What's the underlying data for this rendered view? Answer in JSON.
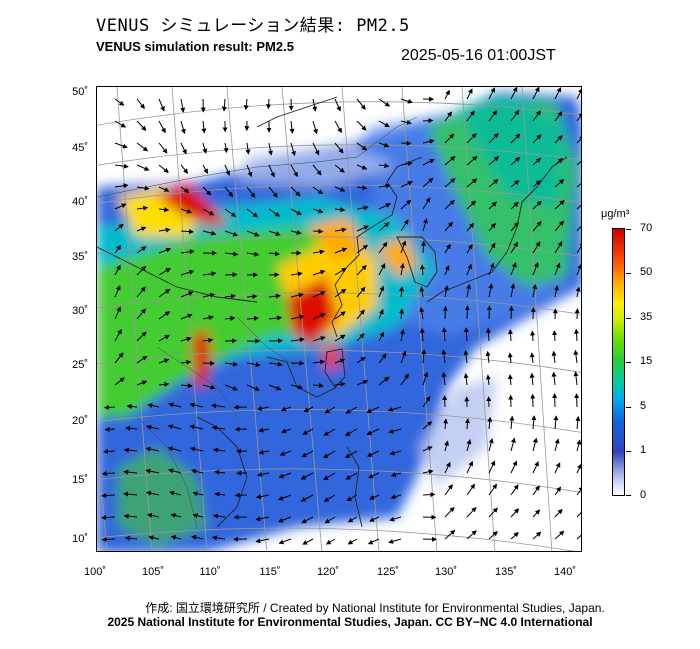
{
  "header": {
    "title_jp": "VENUS シミュレーション結果: PM2.5",
    "title_en": "VENUS simulation result: PM2.5",
    "timestamp": "2025-05-16 01:00JST"
  },
  "map": {
    "region": "East Asia",
    "lat_ticks": [
      "50˚",
      "45˚",
      "40˚",
      "35˚",
      "30˚",
      "25˚",
      "20˚",
      "15˚",
      "10˚"
    ],
    "lon_ticks": [
      "100˚",
      "105˚",
      "110˚",
      "115˚",
      "120˚",
      "125˚",
      "130˚",
      "135˚",
      "140˚"
    ],
    "lat_range": [
      9,
      51
    ],
    "lon_range": [
      100,
      141
    ],
    "field": "PM2.5 concentration",
    "overlay": "wind-arrows"
  },
  "colorbar": {
    "unit": "μg/m³",
    "ticks": [
      "70",
      "50",
      "35",
      "15",
      "5",
      "1",
      "0"
    ],
    "colors": {
      "max": "#cc0000",
      "high": "#ff6600",
      "mid": "#ffee00",
      "green": "#22cc44",
      "cyan": "#00aaee",
      "blue": "#2255cc",
      "min": "#ffffff"
    }
  },
  "footer": {
    "credit_line1": "作成: 国立環境研究所 / Created by National Institute for Environmental Studies, Japan.",
    "credit_line2": "2025 National Institute for Environmental Studies, Japan. CC BY−NC 4.0 International"
  }
}
